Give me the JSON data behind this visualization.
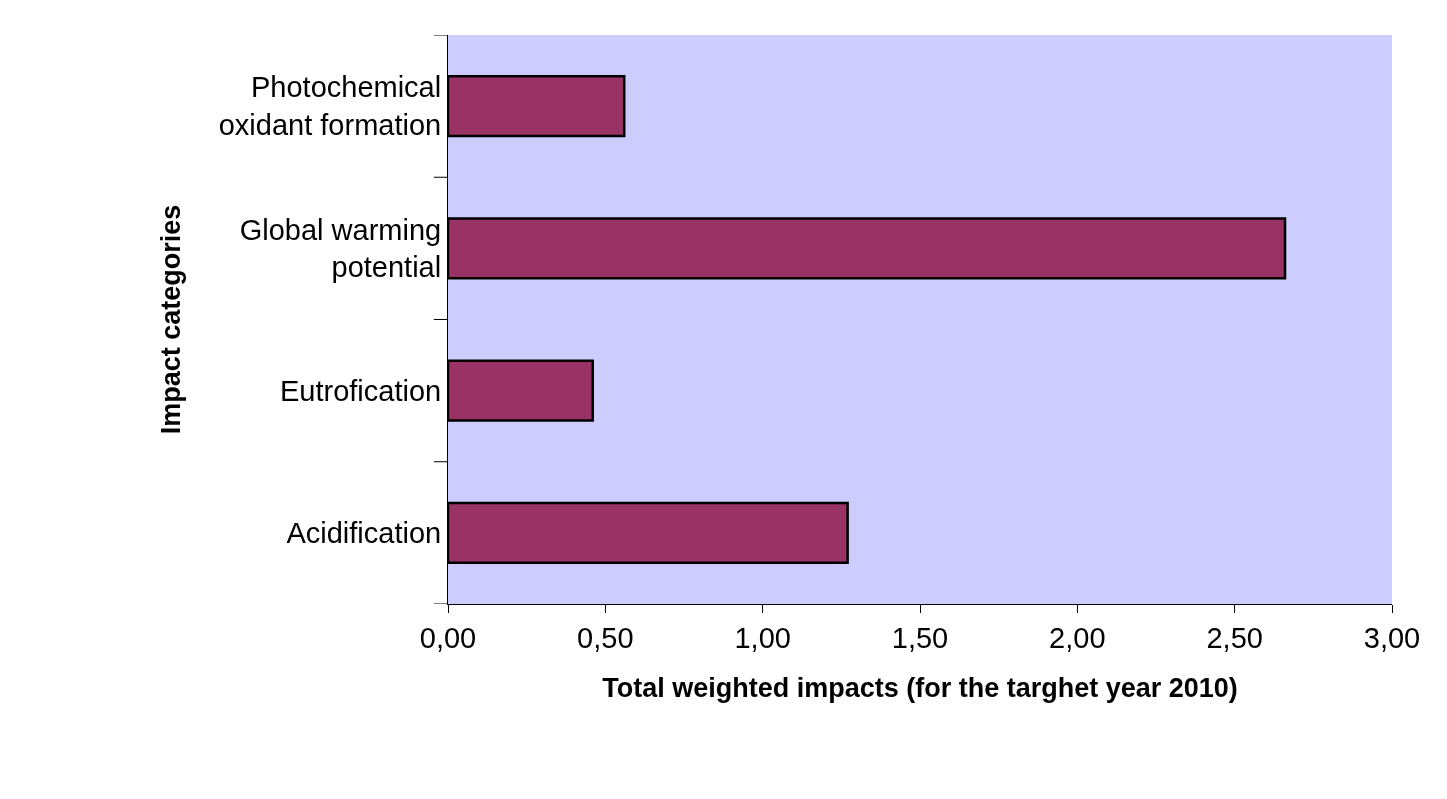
{
  "chart_data": {
    "type": "bar",
    "orientation": "horizontal",
    "xlabel": "Total weighted impacts (for the targhet year 2010)",
    "ylabel": "Impact categories",
    "categories": [
      "Photochemical\noxidant formation",
      "Global warming\npotential",
      "Eutrofication",
      "Acidification"
    ],
    "values": [
      0.56,
      2.66,
      0.46,
      1.27
    ],
    "color": "#993366",
    "xlim": [
      0,
      3
    ],
    "xticks": [
      {
        "value": 0,
        "label": "0,00"
      },
      {
        "value": 0.5,
        "label": "0,50"
      },
      {
        "value": 1,
        "label": "1,00"
      },
      {
        "value": 1.5,
        "label": "1,50"
      },
      {
        "value": 2,
        "label": "2,00"
      },
      {
        "value": 2.5,
        "label": "2,50"
      },
      {
        "value": 3,
        "label": "3,00"
      }
    ],
    "grid": false
  }
}
